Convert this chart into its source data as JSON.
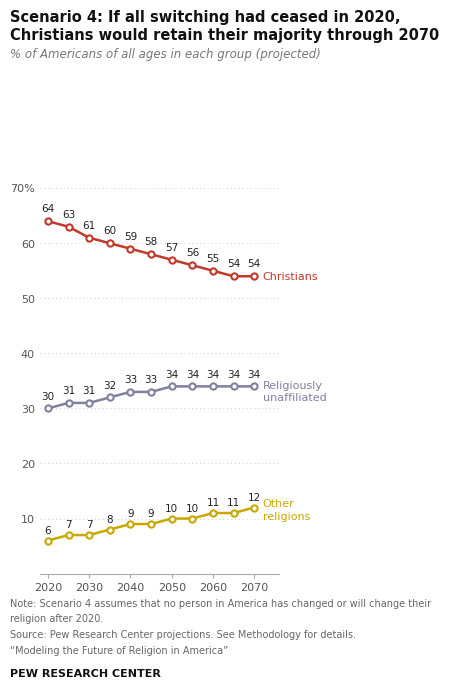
{
  "title_line1": "Scenario 4: If all switching had ceased in 2020,",
  "title_line2": "Christians would retain their majority through 2070",
  "subtitle": "% of Americans of all ages in each group (projected)",
  "years": [
    2020,
    2025,
    2030,
    2035,
    2040,
    2045,
    2050,
    2055,
    2060,
    2065,
    2070
  ],
  "christians": [
    64,
    63,
    61,
    60,
    59,
    58,
    57,
    56,
    55,
    54,
    54
  ],
  "unaffiliated": [
    30,
    31,
    31,
    32,
    33,
    33,
    34,
    34,
    34,
    34,
    34
  ],
  "other": [
    6,
    7,
    7,
    8,
    9,
    9,
    10,
    10,
    11,
    11,
    12
  ],
  "christian_color": "#c0392b",
  "unaffiliated_color": "#8080a0",
  "other_color": "#c8a800",
  "background_color": "#ffffff",
  "note_line1": "Note: Scenario 4 assumes that no person in America has changed or will change their",
  "note_line2": "religion after 2020.",
  "note_line3": "Source: Pew Research Center projections. See Methodology for details.",
  "note_line4": "“Modeling the Future of Religion in America”",
  "footer": "PEW RESEARCH CENTER",
  "ylim": [
    0,
    75
  ],
  "yticks": [
    0,
    10,
    20,
    30,
    40,
    50,
    60,
    70
  ]
}
